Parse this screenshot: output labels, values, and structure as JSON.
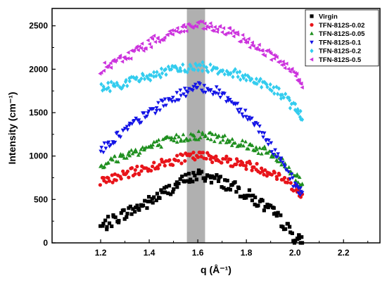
{
  "chart_data": {
    "type": "scatter",
    "xlabel": "q (Å⁻¹)",
    "ylabel": "Intensity (cm⁻¹)",
    "xlim": [
      1.0,
      2.35
    ],
    "ylim": [
      0,
      2700
    ],
    "xticks": [
      1.2,
      1.4,
      1.6,
      1.8,
      2.0,
      2.2
    ],
    "xtick_labels": [
      "1.2",
      "1.4",
      "1.6",
      "1.8",
      "2.0",
      "2.2"
    ],
    "yticks": [
      0,
      500,
      1000,
      1500,
      2000,
      2500
    ],
    "ytick_labels": [
      "0",
      "500",
      "1000",
      "1500",
      "2000",
      "2500"
    ],
    "shaded_band": [
      1.555,
      1.63
    ],
    "shaded_band_color": "#b0b0b0",
    "legend_position": "top-right",
    "grid": false,
    "x_range_points": [
      1.2,
      2.03
    ],
    "series": [
      {
        "name": "Virgin",
        "color": "#000000",
        "marker": "square",
        "x": [
          1.2,
          1.25,
          1.3,
          1.35,
          1.4,
          1.45,
          1.5,
          1.55,
          1.6,
          1.65,
          1.7,
          1.75,
          1.8,
          1.85,
          1.9,
          1.95,
          2.0,
          2.03
        ],
        "y": [
          180,
          260,
          340,
          400,
          470,
          560,
          650,
          730,
          780,
          760,
          700,
          640,
          560,
          470,
          370,
          240,
          60,
          0
        ]
      },
      {
        "name": "TFN-812S-0.02",
        "color": "#e8141a",
        "marker": "circle",
        "x": [
          1.2,
          1.25,
          1.3,
          1.35,
          1.4,
          1.45,
          1.5,
          1.55,
          1.6,
          1.65,
          1.7,
          1.75,
          1.8,
          1.85,
          1.9,
          1.95,
          2.0,
          2.03
        ],
        "y": [
          720,
          740,
          780,
          830,
          870,
          910,
          950,
          980,
          1000,
          990,
          960,
          930,
          900,
          860,
          810,
          750,
          640,
          560
        ]
      },
      {
        "name": "TFN-812S-0.05",
        "color": "#1f8f1f",
        "marker": "triangle-up",
        "x": [
          1.2,
          1.25,
          1.3,
          1.35,
          1.4,
          1.45,
          1.5,
          1.55,
          1.6,
          1.65,
          1.7,
          1.75,
          1.8,
          1.85,
          1.9,
          1.95,
          2.0,
          2.03
        ],
        "y": [
          900,
          950,
          1010,
          1060,
          1100,
          1150,
          1190,
          1220,
          1240,
          1230,
          1200,
          1170,
          1130,
          1080,
          1020,
          920,
          780,
          680
        ]
      },
      {
        "name": "TFN-812S-0.1",
        "color": "#1414e6",
        "marker": "triangle-down",
        "x": [
          1.2,
          1.25,
          1.3,
          1.35,
          1.4,
          1.45,
          1.5,
          1.55,
          1.6,
          1.65,
          1.7,
          1.75,
          1.8,
          1.85,
          1.9,
          1.95,
          2.0,
          2.03
        ],
        "y": [
          1060,
          1180,
          1300,
          1400,
          1500,
          1590,
          1670,
          1740,
          1790,
          1780,
          1710,
          1610,
          1480,
          1330,
          1120,
          900,
          660,
          580
        ]
      },
      {
        "name": "TFN-812S-0.2",
        "color": "#33ccee",
        "marker": "diamond",
        "x": [
          1.2,
          1.25,
          1.3,
          1.35,
          1.4,
          1.45,
          1.5,
          1.55,
          1.6,
          1.65,
          1.7,
          1.75,
          1.8,
          1.85,
          1.9,
          1.95,
          2.0,
          2.03
        ],
        "y": [
          1780,
          1810,
          1840,
          1880,
          1920,
          1960,
          1990,
          2010,
          2030,
          2020,
          1990,
          1950,
          1910,
          1860,
          1790,
          1700,
          1560,
          1420
        ]
      },
      {
        "name": "TFN-812S-0.5",
        "color": "#cc33dd",
        "marker": "triangle-left",
        "x": [
          1.2,
          1.25,
          1.3,
          1.35,
          1.4,
          1.45,
          1.5,
          1.55,
          1.6,
          1.65,
          1.7,
          1.75,
          1.8,
          1.85,
          1.9,
          1.95,
          2.0,
          2.03
        ],
        "y": [
          2000,
          2060,
          2140,
          2220,
          2300,
          2370,
          2430,
          2480,
          2500,
          2480,
          2450,
          2400,
          2330,
          2250,
          2160,
          2060,
          1930,
          1790
        ]
      }
    ]
  }
}
